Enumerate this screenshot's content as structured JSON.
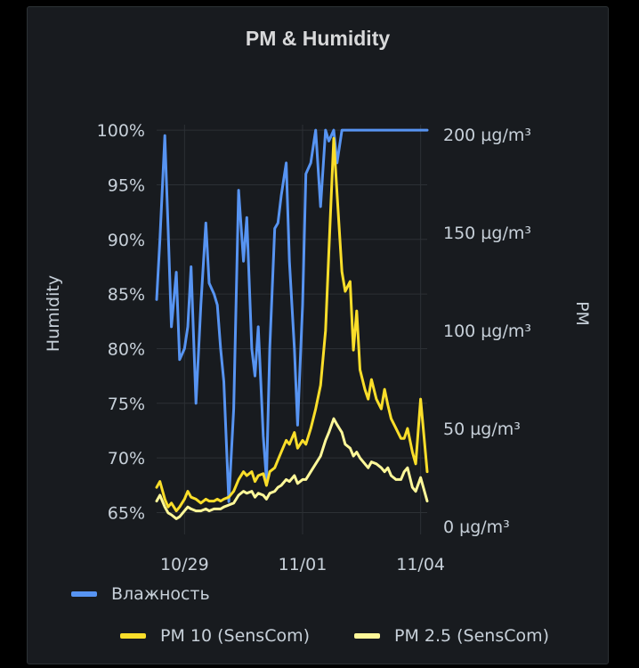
{
  "panel": {
    "title": "PM & Humidity"
  },
  "chart_data": {
    "type": "line",
    "title": "PM & Humidity",
    "y_left": {
      "label": "Humidity",
      "unit": "%",
      "range": [
        63,
        100.5
      ],
      "ticks": [
        65,
        70,
        75,
        80,
        85,
        90,
        95,
        100
      ],
      "tick_labels": [
        "65%",
        "70%",
        "75%",
        "80%",
        "85%",
        "90%",
        "95%",
        "100%"
      ]
    },
    "y_right": {
      "label": "PM",
      "unit": "µg/m³",
      "range": [
        -4,
        205
      ],
      "ticks": [
        0,
        50,
        100,
        150,
        200
      ],
      "tick_labels": [
        "0 µg/m³",
        "50 µg/m³",
        "100 µg/m³",
        "150 µg/m³",
        "200 µg/m³"
      ]
    },
    "x_axis": {
      "range": [
        "10/28 07:00",
        "11/04 04:00"
      ],
      "ticks": [
        "10/29",
        "11/01",
        "11/04"
      ]
    },
    "grid": true,
    "legend_placement": "bottom",
    "series": [
      {
        "name": "Влажность",
        "axis": "left",
        "color": "#5794f2",
        "x": [
          "10/28 07:00",
          "10/28 09:00",
          "10/28 12:00",
          "10/28 14:00",
          "10/28 16:00",
          "10/28 19:00",
          "10/28 21:00",
          "10/29 00:00",
          "10/29 02:00",
          "10/29 04:00",
          "10/29 07:00",
          "10/29 10:00",
          "10/29 13:00",
          "10/29 15:00",
          "10/29 18:00",
          "10/29 20:00",
          "10/29 22:00",
          "10/30 00:00",
          "10/30 03:00",
          "10/30 06:00",
          "10/30 09:00",
          "10/30 12:00",
          "10/30 14:00",
          "10/30 17:00",
          "10/30 19:00",
          "10/30 21:00",
          "10/31 00:00",
          "10/31 02:00",
          "10/31 04:00",
          "10/31 07:00",
          "10/31 09:00",
          "10/31 11:00",
          "10/31 14:00",
          "10/31 16:00",
          "10/31 19:00",
          "10/31 21:00",
          "11/01 00:00",
          "11/01 02:00",
          "11/01 05:00",
          "11/01 08:00",
          "11/01 11:00",
          "11/01 14:00",
          "11/01 16:00",
          "11/01 19:00",
          "11/01 21:00",
          "11/02 00:00",
          "11/02 02:00",
          "11/02 05:00",
          "11/02 07:00",
          "11/02 09:00",
          "11/02 11:00",
          "11/02 14:00",
          "11/02 16:00",
          "11/02 18:00",
          "11/02 21:00",
          "11/03 00:00",
          "11/03 02:00",
          "11/03 04:00",
          "11/03 06:00",
          "11/03 09:00",
          "11/03 12:00",
          "11/03 14:00",
          "11/03 16:00",
          "11/03 19:00",
          "11/03 21:00",
          "11/04 00:00",
          "11/04 04:00"
        ],
        "values": [
          84.5,
          90,
          99.5,
          91,
          82,
          87,
          79,
          80,
          82,
          87.5,
          75,
          84,
          91.5,
          86,
          85,
          84,
          80,
          77,
          66,
          74.5,
          94.5,
          88,
          92,
          80,
          77.5,
          82,
          72,
          68,
          80,
          91,
          91.5,
          94,
          97,
          88,
          80,
          73,
          84,
          96,
          97,
          100,
          93,
          100,
          99,
          100,
          97,
          100,
          100,
          100,
          100,
          100,
          100,
          100,
          100,
          100,
          100,
          100,
          100,
          100,
          100,
          100,
          100,
          100,
          100,
          100,
          100,
          100,
          100
        ]
      },
      {
        "name": "PM 10 (SensCom)",
        "axis": "right",
        "color": "#fade2a",
        "x": [
          "10/28 07:00",
          "10/28 09:00",
          "10/28 12:00",
          "10/28 14:00",
          "10/28 16:00",
          "10/28 19:00",
          "10/28 21:00",
          "10/29 00:00",
          "10/29 02:00",
          "10/29 04:00",
          "10/29 07:00",
          "10/29 10:00",
          "10/29 13:00",
          "10/29 15:00",
          "10/29 18:00",
          "10/29 20:00",
          "10/29 22:00",
          "10/30 00:00",
          "10/30 03:00",
          "10/30 06:00",
          "10/30 09:00",
          "10/30 12:00",
          "10/30 14:00",
          "10/30 17:00",
          "10/30 19:00",
          "10/30 21:00",
          "10/31 00:00",
          "10/31 02:00",
          "10/31 04:00",
          "10/31 07:00",
          "10/31 09:00",
          "10/31 11:00",
          "10/31 14:00",
          "10/31 16:00",
          "10/31 19:00",
          "10/31 21:00",
          "11/01 00:00",
          "11/01 02:00",
          "11/01 05:00",
          "11/01 08:00",
          "11/01 11:00",
          "11/01 14:00",
          "11/01 16:00",
          "11/01 19:00",
          "11/01 21:00",
          "11/02 00:00",
          "11/02 02:00",
          "11/02 05:00",
          "11/02 07:00",
          "11/02 09:00",
          "11/02 11:00",
          "11/02 14:00",
          "11/02 16:00",
          "11/02 18:00",
          "11/02 21:00",
          "11/03 00:00",
          "11/03 02:00",
          "11/03 04:00",
          "11/03 06:00",
          "11/03 09:00",
          "11/03 12:00",
          "11/03 14:00",
          "11/03 16:00",
          "11/03 19:00",
          "11/03 21:00",
          "11/04 00:00",
          "11/04 04:00"
        ],
        "values": [
          20,
          23,
          14,
          10,
          12,
          8,
          10,
          14,
          18,
          15,
          14,
          12,
          14,
          13,
          13,
          14,
          13,
          14,
          15,
          18,
          24,
          28,
          26,
          28,
          23,
          26,
          27,
          21,
          28,
          30,
          34,
          38,
          44,
          42,
          48,
          40,
          44,
          42,
          50,
          60,
          72,
          100,
          140,
          198,
          170,
          130,
          120,
          125,
          90,
          110,
          80,
          70,
          65,
          75,
          65,
          60,
          70,
          62,
          55,
          50,
          45,
          45,
          50,
          38,
          32,
          65,
          28
        ]
      },
      {
        "name": "PM 2.5 (SensCom)",
        "axis": "right",
        "color": "#fff899",
        "x": [
          "10/28 07:00",
          "10/28 09:00",
          "10/28 12:00",
          "10/28 14:00",
          "10/28 16:00",
          "10/28 19:00",
          "10/28 21:00",
          "10/29 00:00",
          "10/29 02:00",
          "10/29 04:00",
          "10/29 07:00",
          "10/29 10:00",
          "10/29 13:00",
          "10/29 15:00",
          "10/29 18:00",
          "10/29 20:00",
          "10/29 22:00",
          "10/30 00:00",
          "10/30 03:00",
          "10/30 06:00",
          "10/30 09:00",
          "10/30 12:00",
          "10/30 14:00",
          "10/30 17:00",
          "10/30 19:00",
          "10/30 21:00",
          "10/31 00:00",
          "10/31 02:00",
          "10/31 04:00",
          "10/31 07:00",
          "10/31 09:00",
          "10/31 11:00",
          "10/31 14:00",
          "10/31 16:00",
          "10/31 19:00",
          "10/31 21:00",
          "11/01 00:00",
          "11/01 02:00",
          "11/01 05:00",
          "11/01 08:00",
          "11/01 11:00",
          "11/01 14:00",
          "11/01 16:00",
          "11/01 19:00",
          "11/01 21:00",
          "11/02 00:00",
          "11/02 02:00",
          "11/02 05:00",
          "11/02 07:00",
          "11/02 09:00",
          "11/02 11:00",
          "11/02 14:00",
          "11/02 16:00",
          "11/02 18:00",
          "11/02 21:00",
          "11/03 00:00",
          "11/03 02:00",
          "11/03 04:00",
          "11/03 06:00",
          "11/03 09:00",
          "11/03 12:00",
          "11/03 14:00",
          "11/03 16:00",
          "11/03 19:00",
          "11/03 21:00",
          "11/04 00:00",
          "11/04 04:00"
        ],
        "values": [
          13,
          16,
          10,
          7,
          6,
          4,
          5,
          8,
          10,
          9,
          8,
          8,
          9,
          8,
          9,
          9,
          9,
          10,
          11,
          12,
          16,
          18,
          17,
          18,
          15,
          17,
          16,
          14,
          17,
          18,
          20,
          21,
          24,
          23,
          26,
          22,
          24,
          24,
          28,
          32,
          36,
          44,
          48,
          55,
          52,
          48,
          42,
          40,
          36,
          38,
          35,
          32,
          30,
          33,
          32,
          30,
          28,
          30,
          26,
          24,
          24,
          28,
          30,
          20,
          18,
          25,
          13
        ]
      }
    ]
  }
}
